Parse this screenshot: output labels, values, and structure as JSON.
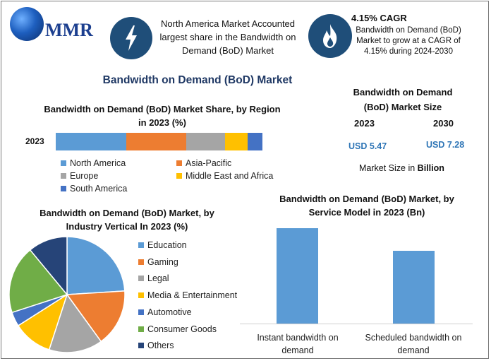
{
  "header": {
    "logo_text": "MMR",
    "fact1": "North America Market Accounted largest share in the Bandwidth on Demand (BoD) Market",
    "cagr_title": "4.15% CAGR",
    "cagr_text": "Bandwidth on Demand (BoD) Market to grow at a CAGR of 4.15% during 2024-2030"
  },
  "main_title": "Bandwidth on Demand (BoD) Market",
  "market_size": {
    "title": "Bandwidth on Demand (BoD) Market Size",
    "year1": "2023",
    "year2": "2030",
    "value1": "USD 5.47",
    "value2": "USD 7.28",
    "unit_note_prefix": "Market Size in ",
    "unit_note_bold": "Billion"
  },
  "chart_data": [
    {
      "type": "bar",
      "orientation": "horizontal-stacked",
      "title": "Bandwidth on Demand (BoD) Market Share, by Region in 2023 (%)",
      "categories": [
        "2023"
      ],
      "series": [
        {
          "name": "North America",
          "values": [
            34
          ],
          "color": "#5b9bd5"
        },
        {
          "name": "Asia-Pacific",
          "values": [
            29
          ],
          "color": "#ed7d31"
        },
        {
          "name": "Europe",
          "values": [
            19
          ],
          "color": "#a5a5a5"
        },
        {
          "name": "Middle East and Africa",
          "values": [
            11
          ],
          "color": "#ffc000"
        },
        {
          "name": "South America",
          "values": [
            7
          ],
          "color": "#4472c4"
        }
      ],
      "legend": "bottom"
    },
    {
      "type": "pie",
      "title": "Bandwidth on Demand (BoD) Market, by Industry Vertical In 2023 (%)",
      "slices": [
        {
          "name": "Education",
          "value": 24,
          "color": "#5b9bd5"
        },
        {
          "name": "Gaming",
          "value": 16,
          "color": "#ed7d31"
        },
        {
          "name": "Legal",
          "value": 15,
          "color": "#a5a5a5"
        },
        {
          "name": "Media & Entertainment",
          "value": 11,
          "color": "#ffc000"
        },
        {
          "name": "Automotive",
          "value": 4,
          "color": "#4472c4"
        },
        {
          "name": "Consumer Goods",
          "value": 19,
          "color": "#70ad47"
        },
        {
          "name": "Others",
          "value": 11,
          "color": "#264478"
        }
      ],
      "legend": "right"
    },
    {
      "type": "bar",
      "title": "Bandwidth on Demand (BoD) Market, by Service Model in 2023 (Bn)",
      "categories": [
        "Instant bandwidth on demand",
        "Scheduled bandwidth on demand"
      ],
      "values": [
        3.1,
        2.37
      ],
      "color": "#5b9bd5",
      "ylim": [
        0,
        3.4
      ],
      "grid": false
    }
  ]
}
